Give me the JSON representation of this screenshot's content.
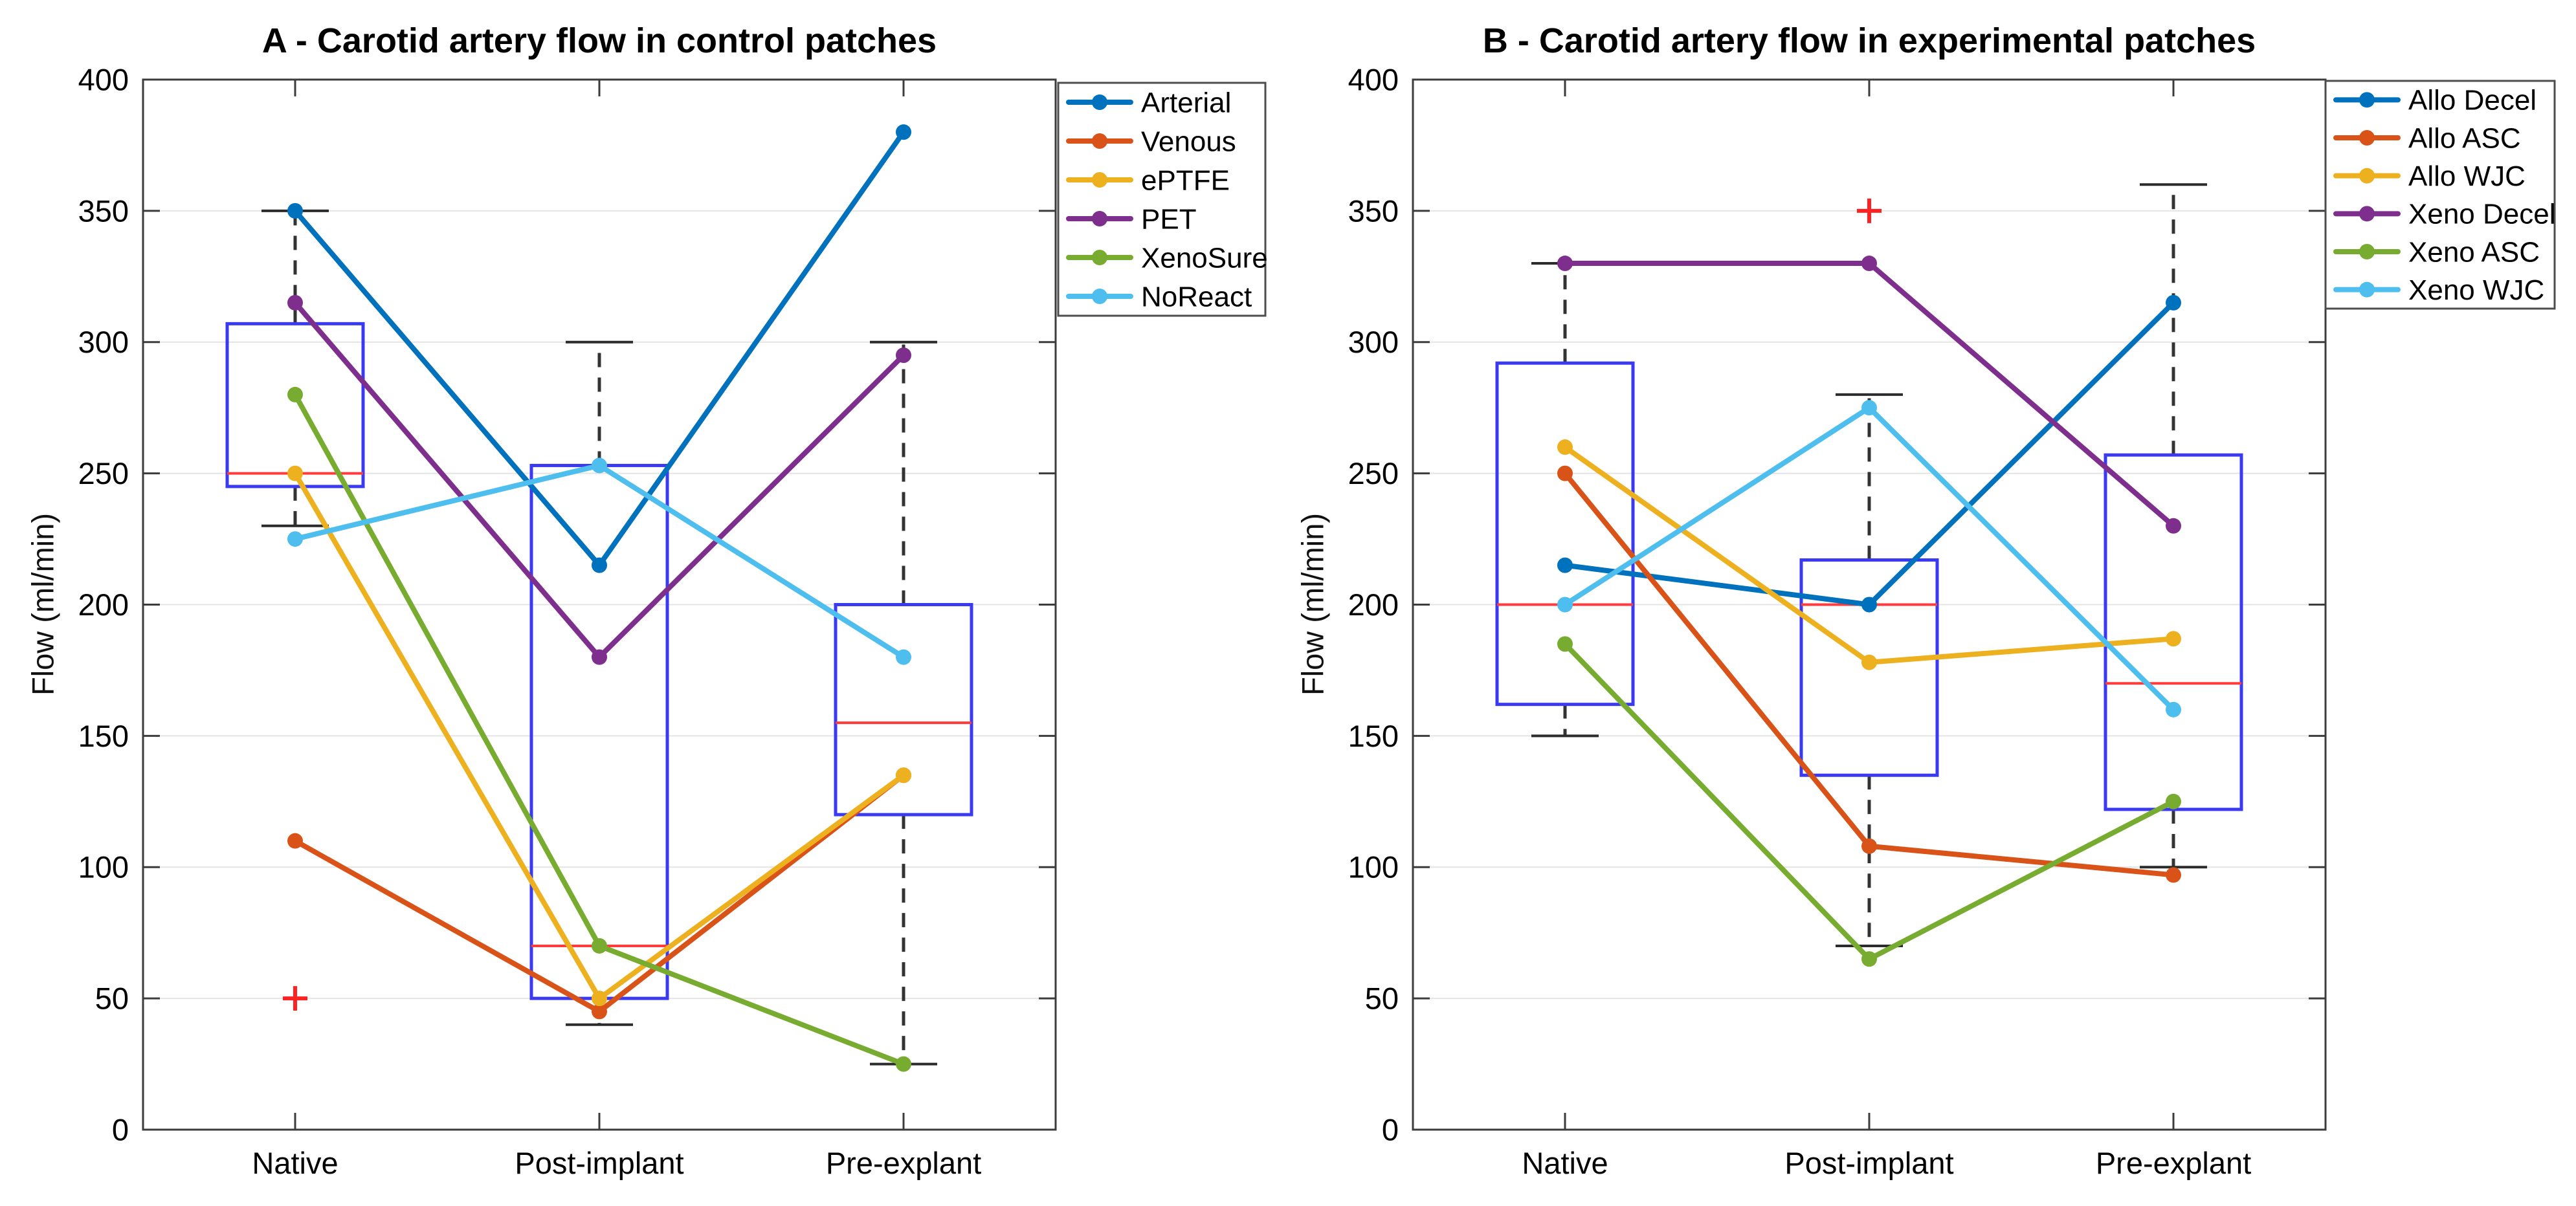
{
  "figure": {
    "background": "#ffffff",
    "kind": "MATLAB-style figure with two box-plot + line-series subplots"
  },
  "styles": {
    "box_color": "#3a3af0",
    "median_color": "#ff3b3b",
    "whisker_color": "#333333",
    "cap_color": "#2b2b2b",
    "outlier_color": "#ff2222",
    "grid_color": "#e4e4e4",
    "axis_color": "#3c3c3c",
    "text_color": "#000000",
    "legend_border_color": "#4d4d4d",
    "legend_background": "#ffffff"
  },
  "chart_data": [
    {
      "id": "A",
      "type": "box+line",
      "title": "A - Carotid artery flow in control patches",
      "ylabel": "Flow (ml/min)",
      "xlabel": "",
      "categories": [
        "Native",
        "Post-implant",
        "Pre-explant"
      ],
      "ylim": [
        0,
        400
      ],
      "yticks": [
        0,
        50,
        100,
        150,
        200,
        250,
        300,
        350,
        400
      ],
      "grid": "y-only",
      "legend_position": "outside-top-right",
      "boxes": [
        {
          "category": "Native",
          "whisker_low": 230,
          "q1": 245,
          "median": 250,
          "q3": 307,
          "whisker_high": 350,
          "outliers": [
            50
          ]
        },
        {
          "category": "Post-implant",
          "whisker_low": 40,
          "q1": 50,
          "median": 70,
          "q3": 253,
          "whisker_high": 300,
          "outliers": []
        },
        {
          "category": "Pre-explant",
          "whisker_low": 25,
          "q1": 120,
          "median": 155,
          "q3": 200,
          "whisker_high": 300,
          "outliers": []
        }
      ],
      "series": [
        {
          "name": "Arterial",
          "color": "#0072BD",
          "values": [
            350,
            215,
            380
          ]
        },
        {
          "name": "Venous",
          "color": "#D95319",
          "values": [
            110,
            45,
            135
          ]
        },
        {
          "name": "ePTFE",
          "color": "#EDB120",
          "values": [
            250,
            50,
            135
          ]
        },
        {
          "name": "PET",
          "color": "#7E2F8E",
          "values": [
            315,
            180,
            295
          ]
        },
        {
          "name": "XenoSure",
          "color": "#77AC30",
          "values": [
            280,
            70,
            25
          ]
        },
        {
          "name": "NoReact",
          "color": "#4DBEEE",
          "values": [
            225,
            253,
            180
          ]
        }
      ]
    },
    {
      "id": "B",
      "type": "box+line",
      "title": "B - Carotid artery flow in experimental patches",
      "ylabel": "Flow (ml/min)",
      "xlabel": "",
      "categories": [
        "Native",
        "Post-implant",
        "Pre-explant"
      ],
      "ylim": [
        0,
        400
      ],
      "yticks": [
        0,
        50,
        100,
        150,
        200,
        250,
        300,
        350,
        400
      ],
      "grid": "y-only",
      "legend_position": "outside-top-right",
      "boxes": [
        {
          "category": "Native",
          "whisker_low": 150,
          "q1": 162,
          "median": 200,
          "q3": 292,
          "whisker_high": 330,
          "outliers": []
        },
        {
          "category": "Post-implant",
          "whisker_low": 70,
          "q1": 135,
          "median": 200,
          "q3": 217,
          "whisker_high": 280,
          "outliers": [
            350
          ]
        },
        {
          "category": "Pre-explant",
          "whisker_low": 100,
          "q1": 122,
          "median": 170,
          "q3": 257,
          "whisker_high": 360,
          "outliers": []
        }
      ],
      "series": [
        {
          "name": "Allo Decel",
          "color": "#0072BD",
          "values": [
            215,
            200,
            315
          ]
        },
        {
          "name": "Allo ASC",
          "color": "#D95319",
          "values": [
            250,
            108,
            97
          ]
        },
        {
          "name": "Allo WJC",
          "color": "#EDB120",
          "values": [
            260,
            178,
            187
          ]
        },
        {
          "name": "Xeno Decel",
          "color": "#7E2F8E",
          "values": [
            330,
            330,
            230
          ]
        },
        {
          "name": "Xeno ASC",
          "color": "#77AC30",
          "values": [
            185,
            65,
            125
          ]
        },
        {
          "name": "Xeno WJC",
          "color": "#4DBEEE",
          "values": [
            200,
            275,
            160
          ]
        }
      ]
    }
  ]
}
